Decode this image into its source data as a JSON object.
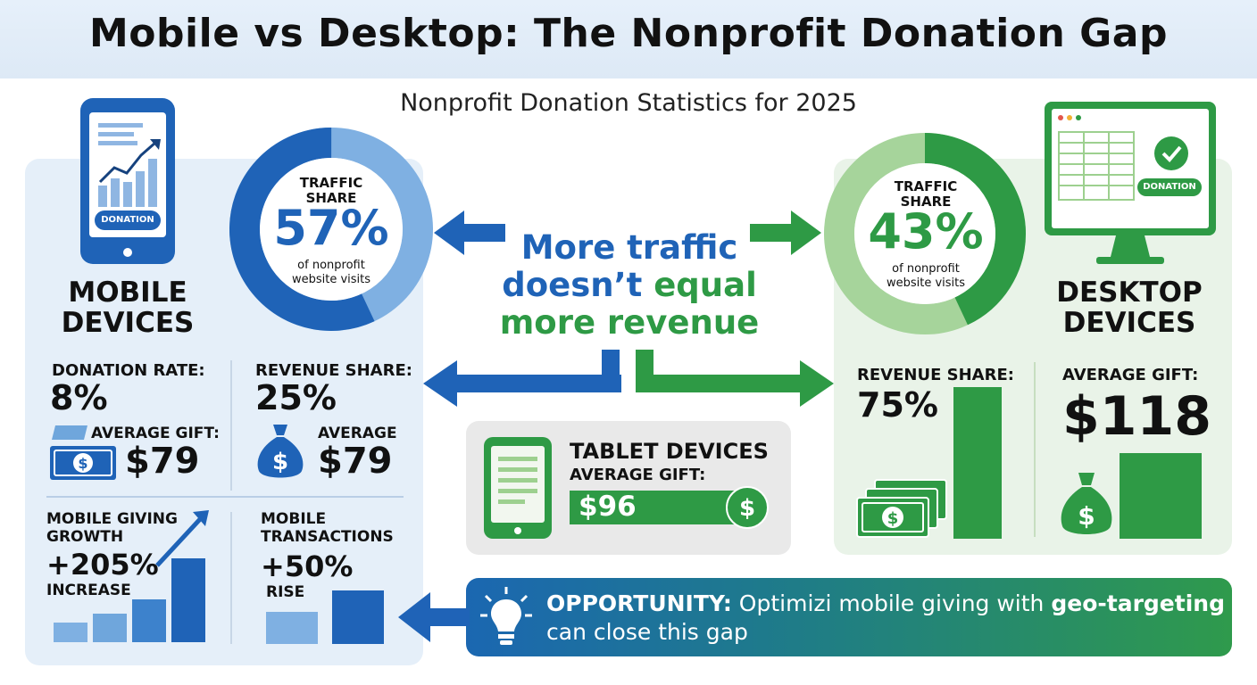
{
  "header": {
    "title": "Mobile vs Desktop: The Nonprofit Donation Gap",
    "subtitle": "Nonprofit Donation Statistics for 2025"
  },
  "mobile": {
    "phone_button": "DONATION",
    "heading_line1": "MOBILE",
    "heading_line2": "DEVICES",
    "traffic_label_1": "TRAFFIC",
    "traffic_label_2": "SHARE",
    "traffic_value": "57%",
    "traffic_caption_1": "of nonprofit",
    "traffic_caption_2": "website visits",
    "traffic_fraction": 0.57,
    "donation_rate_label": "DONATION RATE:",
    "donation_rate_value": "8%",
    "average_gift_label": "AVERAGE GIFT:",
    "average_gift_value": "$79",
    "revenue_share_label": "REVENUE SHARE:",
    "revenue_share_value": "25%",
    "average_label": "AVERAGE",
    "average_value": "$79",
    "growth_label_1": "MOBILE GIVING",
    "growth_label_2": "GROWTH",
    "growth_value": "+205%",
    "growth_suffix": "INCREASE",
    "transactions_label_1": "MOBILE",
    "transactions_label_2": "TRANSACTIONS",
    "transactions_value": "+50%",
    "transactions_suffix": "RISE"
  },
  "center": {
    "line1": "More traffic",
    "line2a": "doesn’t",
    "line2b": "equal",
    "line3": "more revenue"
  },
  "desktop": {
    "monitor_button": "DONATION",
    "heading_line1": "DESKTOP",
    "heading_line2": "DEVICES",
    "traffic_label_1": "TRAFFIC",
    "traffic_label_2": "SHARE",
    "traffic_value": "43%",
    "traffic_caption_1": "of nonprofit",
    "traffic_caption_2": "website visits",
    "traffic_fraction": 0.43,
    "revenue_share_label": "REVENUE SHARE:",
    "revenue_share_value": "75%",
    "average_gift_label": "AVERAGE GIFT:",
    "average_gift_value": "$118"
  },
  "tablet": {
    "heading": "TABLET DEVICES",
    "average_gift_label": "AVERAGE GIFT:",
    "average_gift_value": "$96"
  },
  "opportunity": {
    "label": "OPPORTUNITY:",
    "text_part1": " Optimizi mobile giving with ",
    "highlight": "geo-targeting",
    "text_line2": "can close this gap"
  },
  "colors": {
    "mobile_blue": "#1f63b7",
    "desktop_green": "#2e9a45",
    "light_blue": "#6fa6dc",
    "light_green": "#9dd08f"
  }
}
